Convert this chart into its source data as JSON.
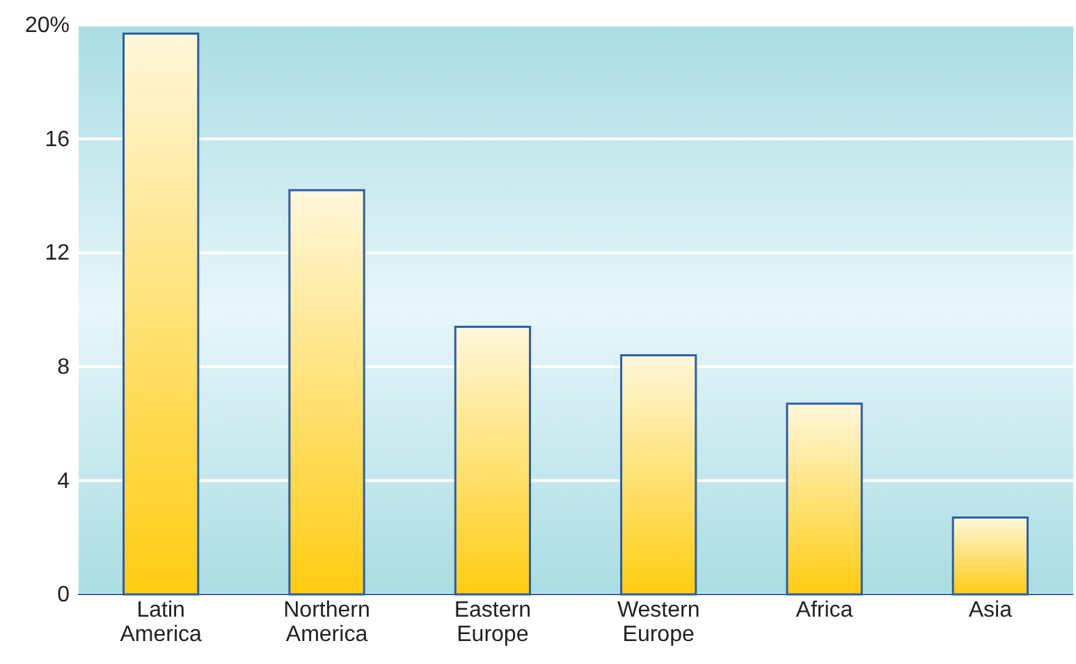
{
  "chart_data": {
    "type": "bar",
    "categories": [
      "Latin America",
      "Northern America",
      "Eastern Europe",
      "Western Europe",
      "Africa",
      "Asia"
    ],
    "values": [
      19.7,
      14.2,
      9.4,
      8.4,
      6.7,
      2.7
    ],
    "color": "#ffcc11",
    "ylim": [
      0,
      20
    ],
    "yticks": [
      0,
      4,
      8,
      12,
      16,
      {
        "value": 20,
        "label": "20%"
      }
    ],
    "grid": "y"
  }
}
